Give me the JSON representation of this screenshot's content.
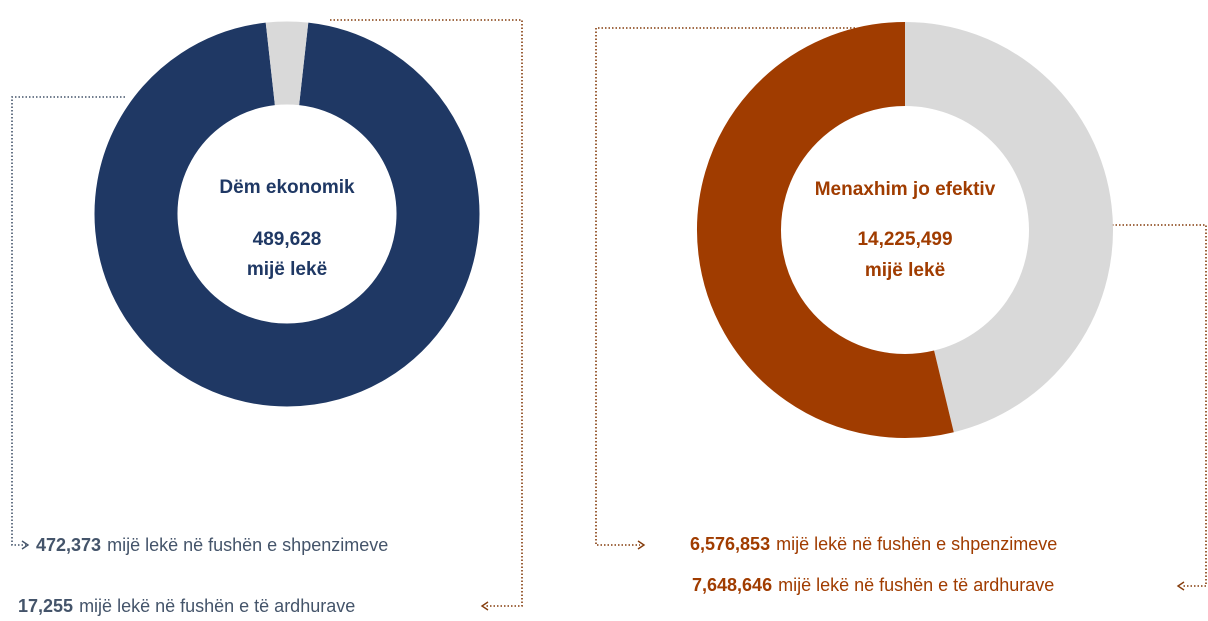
{
  "chart_data": [
    {
      "type": "donut",
      "title": "Dëm ekonomik",
      "total": {
        "value": 489628,
        "label": "489,628"
      },
      "unit": "mijë lekë",
      "categories": [
        "mijë lekë në fushën e shpenzimeve",
        "mijë lekë në fushën e të ardhurave"
      ],
      "values": [
        472373,
        17255
      ],
      "value_labels": [
        "472,373",
        "17,255"
      ],
      "colors": [
        "#1f3864",
        "#d9d9d9"
      ]
    },
    {
      "type": "donut",
      "title": "Menaxhim jo efektiv",
      "total": {
        "value": 14225499,
        "label": "14,225,499"
      },
      "unit": "mijë lekë",
      "categories": [
        "mijë lekë në fushën e shpenzimeve",
        "mijë lekë në fushën e të ardhurave"
      ],
      "values": [
        6576853,
        7648646
      ],
      "value_labels": [
        "6,576,853",
        "7,648,646"
      ],
      "colors": [
        "#d9d9d9",
        "#a03c00"
      ]
    }
  ]
}
